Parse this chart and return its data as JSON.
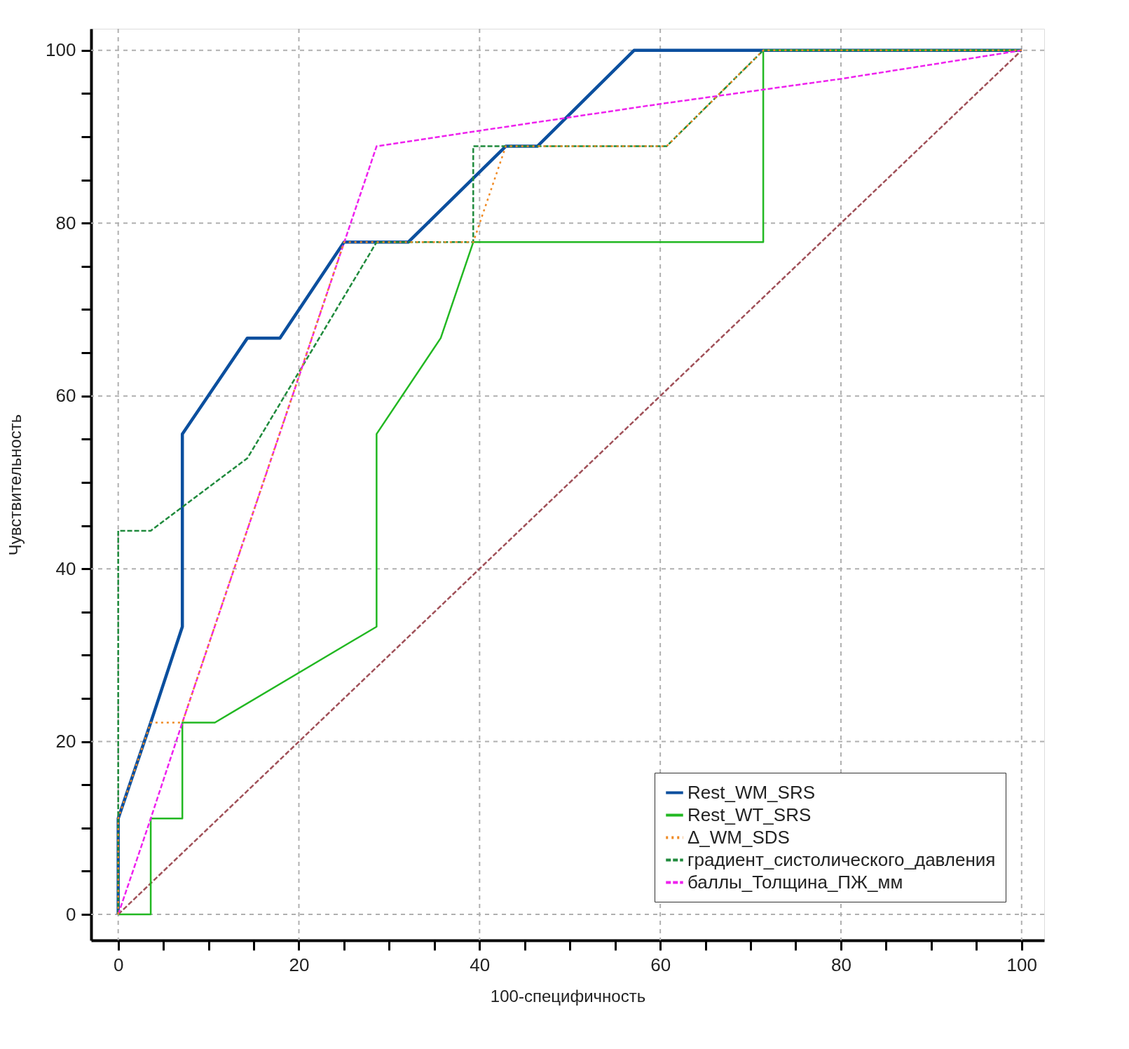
{
  "chart_data": {
    "type": "line",
    "xlabel": "100-специфичность",
    "ylabel": "Чувствительность",
    "xlim": [
      -3,
      102.5
    ],
    "ylim": [
      -3,
      102.5
    ],
    "xticks": [
      0,
      {
        "value": 5,
        "label": null
      },
      {
        "value": 10,
        "label": null
      },
      {
        "value": 15,
        "label": null
      },
      20,
      {
        "value": 25,
        "label": null
      },
      {
        "value": 30,
        "label": null
      },
      {
        "value": 35,
        "label": null
      },
      40,
      {
        "value": 45,
        "label": null
      },
      {
        "value": 50,
        "label": null
      },
      {
        "value": 55,
        "label": null
      },
      60,
      {
        "value": 65,
        "label": null
      },
      {
        "value": 70,
        "label": null
      },
      {
        "value": 75,
        "label": null
      },
      80,
      {
        "value": 85,
        "label": null
      },
      {
        "value": 90,
        "label": null
      },
      {
        "value": 95,
        "label": null
      },
      100
    ],
    "yticks": [
      0,
      {
        "value": 5,
        "label": null
      },
      {
        "value": 10,
        "label": null
      },
      {
        "value": 15,
        "label": null
      },
      20,
      {
        "value": 25,
        "label": null
      },
      {
        "value": 30,
        "label": null
      },
      {
        "value": 35,
        "label": null
      },
      40,
      {
        "value": 45,
        "label": null
      },
      {
        "value": 50,
        "label": null
      },
      {
        "value": 55,
        "label": null
      },
      60,
      {
        "value": 65,
        "label": null
      },
      {
        "value": 70,
        "label": null
      },
      {
        "value": 75,
        "label": null
      },
      80,
      {
        "value": 85,
        "label": null
      },
      {
        "value": 90,
        "label": null
      },
      {
        "value": 95,
        "label": null
      },
      100
    ],
    "grid": true,
    "legend": "bottom right",
    "marker": "none",
    "series": [
      {
        "name": "Rest_WM_SRS",
        "color": "#0b4f9e",
        "line_style": "solid",
        "x": [
          0,
          0,
          3.6,
          7.1,
          7.1,
          14.3,
          17.9,
          25,
          32.1,
          42.9,
          46.4,
          57.1,
          100
        ],
        "values": [
          0,
          11.1,
          22.2,
          33.3,
          55.6,
          66.7,
          66.7,
          77.8,
          77.8,
          88.9,
          88.9,
          100,
          100
        ]
      },
      {
        "name": "Rest_WT_SRS",
        "color": "#22b822",
        "line_style": "solid",
        "x": [
          0,
          3.6,
          3.6,
          7.1,
          7.1,
          10.7,
          28.6,
          28.6,
          35.7,
          39.3,
          39.3,
          71.4,
          71.4,
          100
        ],
        "values": [
          0,
          0,
          11.1,
          11.1,
          22.2,
          22.2,
          33.3,
          55.6,
          66.7,
          77.8,
          77.8,
          77.8,
          100,
          100
        ]
      },
      {
        "name": "Δ_WM_SDS",
        "color": "#f08a24",
        "line_style": "dotted",
        "x": [
          0,
          0,
          3.6,
          7.1,
          25,
          39.3,
          42.9,
          60.7,
          71.4,
          100
        ],
        "values": [
          0,
          11.1,
          22.2,
          22.2,
          77.8,
          77.8,
          88.9,
          88.9,
          100,
          100
        ]
      },
      {
        "name": "градиент_систолического_давления",
        "color": "#1f8a3c",
        "line_style": "dashed",
        "x": [
          0,
          0,
          3.6,
          14.3,
          28.6,
          39.3,
          39.3,
          60.7,
          71.4,
          100
        ],
        "values": [
          0,
          44.4,
          44.4,
          52.8,
          77.8,
          77.8,
          88.9,
          88.9,
          100,
          100
        ]
      },
      {
        "name": "баллы_Толщина_ПЖ_мм",
        "color": "#ee22ee",
        "line_style": "dashed",
        "x": [
          0,
          2.6,
          3.6,
          7.1,
          28.6,
          40,
          60,
          80,
          100
        ],
        "values": [
          0,
          8,
          11.1,
          22.2,
          88.9,
          90.7,
          93.8,
          96.7,
          100
        ]
      },
      {
        "color": "#a05058",
        "line_style": "dashed",
        "x": [
          0,
          100
        ],
        "values": [
          0,
          100
        ]
      }
    ]
  }
}
